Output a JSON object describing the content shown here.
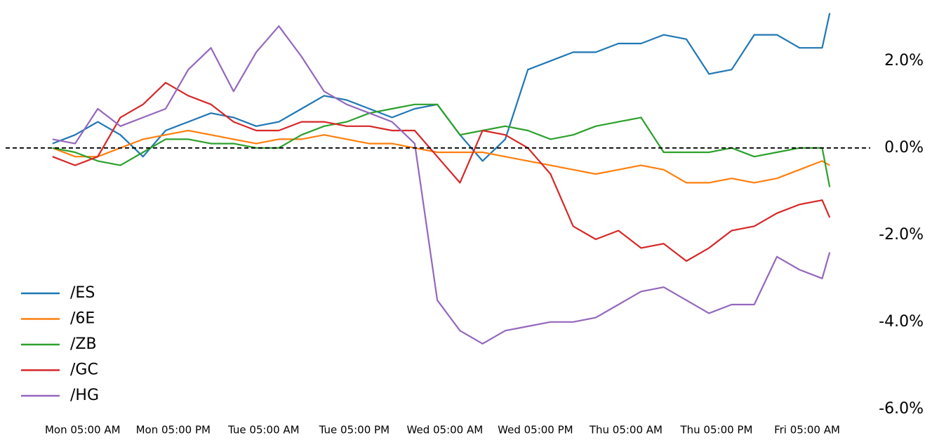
{
  "chart_data": {
    "type": "line",
    "x": [
      -4,
      -1,
      2,
      5,
      8,
      11,
      14,
      17,
      20,
      23,
      26,
      29,
      32,
      35,
      38,
      41,
      44,
      47,
      50,
      53,
      56,
      59,
      62,
      65,
      68,
      71,
      74,
      77,
      80,
      83,
      86,
      89,
      92,
      95,
      98,
      99
    ],
    "xlim": [
      -5,
      100
    ],
    "xticks": [
      {
        "value": 0,
        "label": "Mon 05:00 AM"
      },
      {
        "value": 12,
        "label": "Mon 05:00 PM"
      },
      {
        "value": 24,
        "label": "Tue 05:00 AM"
      },
      {
        "value": 36,
        "label": "Tue 05:00 PM"
      },
      {
        "value": 48,
        "label": "Wed 05:00 AM"
      },
      {
        "value": 60,
        "label": "Wed 05:00 PM"
      },
      {
        "value": 72,
        "label": "Thu 05:00 AM"
      },
      {
        "value": 84,
        "label": "Thu 05:00 PM"
      },
      {
        "value": 96,
        "label": "Fri 05:00 AM"
      }
    ],
    "ylim": [
      -6.1,
      3.4
    ],
    "yticks": [
      {
        "value": 2,
        "label": "2.0%"
      },
      {
        "value": 0,
        "label": "0.0%"
      },
      {
        "value": -2,
        "label": "-2.0%"
      },
      {
        "value": -4,
        "label": "-4.0%"
      },
      {
        "value": -6,
        "label": "-6.0%"
      }
    ],
    "hline": 0,
    "legend": "lower left",
    "series": [
      {
        "name": "/ES",
        "color": "#1f77b4",
        "values": [
          0.1,
          0.3,
          0.6,
          0.3,
          -0.2,
          0.4,
          0.6,
          0.8,
          0.7,
          0.5,
          0.6,
          0.9,
          1.2,
          1.1,
          0.9,
          0.7,
          0.9,
          1.0,
          0.3,
          -0.3,
          0.2,
          1.8,
          2.0,
          2.2,
          2.2,
          2.4,
          2.4,
          2.6,
          2.5,
          1.7,
          1.8,
          2.6,
          2.6,
          2.3,
          2.3,
          3.1
        ]
      },
      {
        "name": "/6E",
        "color": "#ff7f0e",
        "values": [
          0.0,
          -0.2,
          -0.2,
          0.0,
          0.2,
          0.3,
          0.4,
          0.3,
          0.2,
          0.1,
          0.2,
          0.2,
          0.3,
          0.2,
          0.1,
          0.1,
          0.0,
          -0.1,
          -0.1,
          -0.1,
          -0.2,
          -0.3,
          -0.4,
          -0.5,
          -0.6,
          -0.5,
          -0.4,
          -0.5,
          -0.8,
          -0.8,
          -0.7,
          -0.8,
          -0.7,
          -0.5,
          -0.3,
          -0.4
        ]
      },
      {
        "name": "/ZB",
        "color": "#2ca02c",
        "values": [
          0.0,
          -0.1,
          -0.3,
          -0.4,
          -0.1,
          0.2,
          0.2,
          0.1,
          0.1,
          0.0,
          0.0,
          0.3,
          0.5,
          0.6,
          0.8,
          0.9,
          1.0,
          1.0,
          0.3,
          0.4,
          0.5,
          0.4,
          0.2,
          0.3,
          0.5,
          0.6,
          0.7,
          -0.1,
          -0.1,
          -0.1,
          0.0,
          -0.2,
          -0.1,
          0.0,
          0.0,
          -0.9
        ]
      },
      {
        "name": "/GC",
        "color": "#d62728",
        "values": [
          -0.2,
          -0.4,
          -0.2,
          0.7,
          1.0,
          1.5,
          1.2,
          1.0,
          0.6,
          0.4,
          0.4,
          0.6,
          0.6,
          0.5,
          0.5,
          0.4,
          0.4,
          -0.2,
          -0.8,
          0.4,
          0.3,
          0.0,
          -0.6,
          -1.8,
          -2.1,
          -1.9,
          -2.3,
          -2.2,
          -2.6,
          -2.3,
          -1.9,
          -1.8,
          -1.5,
          -1.3,
          -1.2,
          -1.6
        ]
      },
      {
        "name": "/HG",
        "color": "#9467bd",
        "values": [
          0.2,
          0.1,
          0.9,
          0.5,
          0.7,
          0.9,
          1.8,
          2.3,
          1.3,
          2.2,
          2.8,
          2.1,
          1.3,
          1.0,
          0.8,
          0.6,
          0.1,
          -3.5,
          -4.2,
          -4.5,
          -4.2,
          -4.1,
          -4.0,
          -4.0,
          -3.9,
          -3.6,
          -3.3,
          -3.2,
          -3.5,
          -3.8,
          -3.6,
          -3.6,
          -2.5,
          -2.8,
          -3.0,
          -2.4
        ]
      }
    ]
  }
}
